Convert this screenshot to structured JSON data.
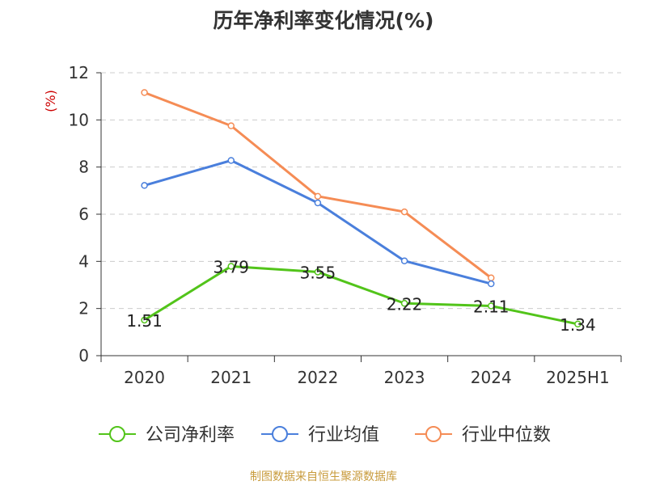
{
  "chart_data": {
    "type": "line",
    "title": "历年净利率变化情况(%)",
    "ylabel": "(%)",
    "xlabel": "",
    "categories": [
      "2020",
      "2021",
      "2022",
      "2023",
      "2024",
      "2025H1"
    ],
    "ylim": [
      0,
      12
    ],
    "yticks": [
      0,
      2,
      4,
      6,
      8,
      10,
      12
    ],
    "grid": true,
    "legend_position": "bottom",
    "series": [
      {
        "name": "公司净利率",
        "color": "#52c41a",
        "show_labels": true,
        "values": [
          1.51,
          3.79,
          3.55,
          2.22,
          2.11,
          1.34
        ]
      },
      {
        "name": "行业均值",
        "color": "#4a7fdc",
        "show_labels": false,
        "values": [
          7.22,
          8.28,
          6.48,
          4.02,
          3.05,
          null
        ]
      },
      {
        "name": "行业中位数",
        "color": "#f58c55",
        "show_labels": false,
        "values": [
          11.16,
          9.75,
          6.76,
          6.1,
          3.3,
          null
        ]
      }
    ]
  },
  "source_note": "制图数据来自恒生聚源数据库"
}
